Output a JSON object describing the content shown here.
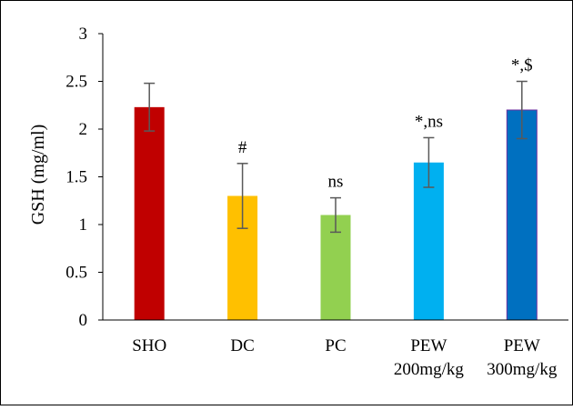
{
  "chart_data": {
    "type": "bar",
    "title": "",
    "xlabel": "",
    "ylabel": "GSH (mg/ml)",
    "ylim": [
      0,
      3
    ],
    "yticks": [
      "0",
      "0.5",
      "1",
      "1.5",
      "2",
      "2.5",
      "3"
    ],
    "grid": false,
    "legend": "none",
    "categories": [
      [
        "SHO"
      ],
      [
        "DC"
      ],
      [
        "PC"
      ],
      [
        "PEW",
        "200mg/kg"
      ],
      [
        "PEW",
        "300mg/kg"
      ]
    ],
    "values": [
      2.23,
      1.3,
      1.1,
      1.65,
      2.2
    ],
    "errors": [
      0.25,
      0.34,
      0.18,
      0.26,
      0.3
    ],
    "annotations": [
      "",
      "#",
      "ns",
      "*,ns",
      "*,$"
    ],
    "colors": [
      "#c00000",
      "#ffc000",
      "#92d050",
      "#00b0f0",
      "#0070c0"
    ],
    "outline_colors": [
      "none",
      "none",
      "none",
      "none",
      "#7030a0"
    ]
  }
}
